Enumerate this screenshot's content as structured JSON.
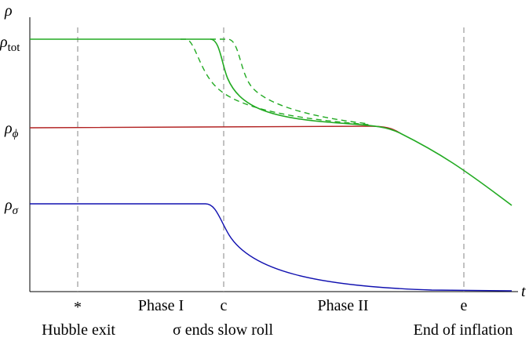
{
  "axes": {
    "y_label": "ρ",
    "x_label": "t"
  },
  "levels": [
    {
      "symbol": "ρ",
      "subscript": "tot"
    },
    {
      "symbol": "ρ",
      "subscript": "ϕ"
    },
    {
      "symbol": "ρ",
      "subscript": "σ"
    }
  ],
  "markers": [
    "*",
    "c",
    "e"
  ],
  "phases": [
    "Phase I",
    "Phase II"
  ],
  "events": [
    "Hubble exit",
    "σ ends slow roll",
    "End of inflation"
  ]
}
